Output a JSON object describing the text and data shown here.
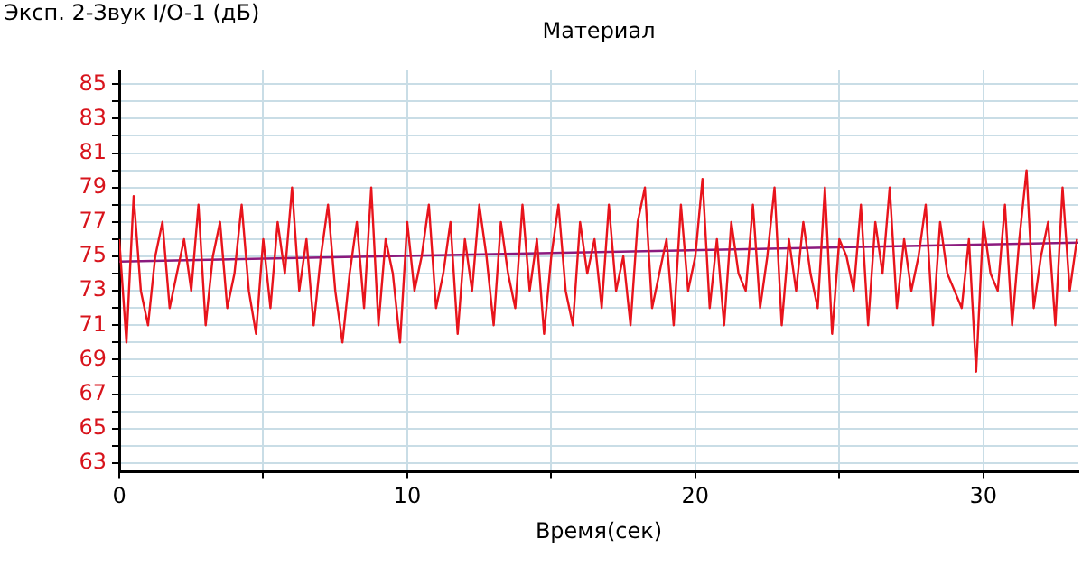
{
  "chart_data": {
    "type": "line",
    "title": "Материал",
    "ylabel": "Эксп. 2-Звук I/O-1 (дБ)",
    "xlabel": "Время(сек)",
    "xlim": [
      0,
      33.3
    ],
    "xticks": [
      0,
      {
        "value": 5,
        "label": null
      },
      10,
      {
        "value": 15,
        "label": null
      },
      20,
      {
        "value": 25,
        "label": null
      },
      30
    ],
    "ylim": [
      62.5,
      85.8
    ],
    "yticks": [
      63,
      {
        "value": 64,
        "label": null
      },
      65,
      {
        "value": 66,
        "label": null
      },
      67,
      {
        "value": 68,
        "label": null
      },
      69,
      {
        "value": 70,
        "label": null
      },
      71,
      {
        "value": 72,
        "label": null
      },
      73,
      {
        "value": 74,
        "label": null
      },
      75,
      {
        "value": 76,
        "label": null
      },
      77,
      {
        "value": 78,
        "label": null
      },
      79,
      {
        "value": 80,
        "label": null
      },
      81,
      {
        "value": 82,
        "label": null
      },
      83,
      {
        "value": 84,
        "label": null
      },
      85
    ],
    "grid": true,
    "legend": false,
    "marker": "none",
    "line_style": "solid",
    "series": [
      {
        "color": "#e8141c",
        "x": [
          0,
          0.25,
          0.5,
          0.75,
          1,
          1.25,
          1.5,
          1.75,
          2,
          2.25,
          2.5,
          2.75,
          3,
          3.25,
          3.5,
          3.75,
          4,
          4.25,
          4.5,
          4.75,
          5,
          5.25,
          5.5,
          5.75,
          6,
          6.25,
          6.5,
          6.75,
          7,
          7.25,
          7.5,
          7.75,
          8,
          8.25,
          8.5,
          8.75,
          9,
          9.25,
          9.5,
          9.75,
          10,
          10.25,
          10.5,
          10.75,
          11,
          11.25,
          11.5,
          11.75,
          12,
          12.25,
          12.5,
          12.75,
          13,
          13.25,
          13.5,
          13.75,
          14,
          14.25,
          14.5,
          14.75,
          15,
          15.25,
          15.5,
          15.75,
          16,
          16.25,
          16.5,
          16.75,
          17,
          17.25,
          17.5,
          17.75,
          18,
          18.25,
          18.5,
          18.75,
          19,
          19.25,
          19.5,
          19.75,
          20,
          20.25,
          20.5,
          20.75,
          21,
          21.25,
          21.5,
          21.75,
          22,
          22.25,
          22.5,
          22.75,
          23,
          23.25,
          23.5,
          23.75,
          24,
          24.25,
          24.5,
          24.75,
          25,
          25.25,
          25.5,
          25.75,
          26,
          26.25,
          26.5,
          26.75,
          27,
          27.25,
          27.5,
          27.75,
          28,
          28.25,
          28.5,
          28.75,
          29,
          29.25,
          29.5,
          29.75,
          30,
          30.25,
          30.5,
          30.75,
          31,
          31.25,
          31.5,
          31.75,
          32,
          32.25,
          32.5,
          32.75,
          33,
          33.25
        ],
        "values": [
          76,
          70,
          78.5,
          73,
          71,
          75,
          77,
          72,
          74,
          76,
          73,
          78,
          71,
          75,
          77,
          72,
          74,
          78,
          73,
          70.5,
          76,
          72,
          77,
          74,
          79,
          73,
          76,
          71,
          75,
          78,
          73,
          70,
          74,
          77,
          72,
          79,
          71,
          76,
          74,
          70,
          77,
          73,
          75,
          78,
          72,
          74,
          77,
          70.5,
          76,
          73,
          78,
          75,
          71,
          77,
          74,
          72,
          78,
          73,
          76,
          70.5,
          75,
          78,
          73,
          71,
          77,
          74,
          76,
          72,
          78,
          73,
          75,
          71,
          77,
          79,
          72,
          74,
          76,
          71,
          78,
          73,
          75,
          79.5,
          72,
          76,
          71,
          77,
          74,
          73,
          78,
          72,
          75,
          79,
          71,
          76,
          73,
          77,
          74,
          72,
          79,
          70.5,
          76,
          75,
          73,
          78,
          71,
          77,
          74,
          79,
          72,
          76,
          73,
          75,
          78,
          71,
          77,
          74,
          73,
          72,
          76,
          68.3,
          77,
          74,
          73,
          78,
          71,
          76,
          80,
          72,
          75,
          77,
          71,
          79,
          73,
          76
        ]
      },
      {
        "color": "#8b1a7e",
        "x": [
          0,
          33.3
        ],
        "values": [
          74.7,
          75.8
        ]
      }
    ]
  }
}
